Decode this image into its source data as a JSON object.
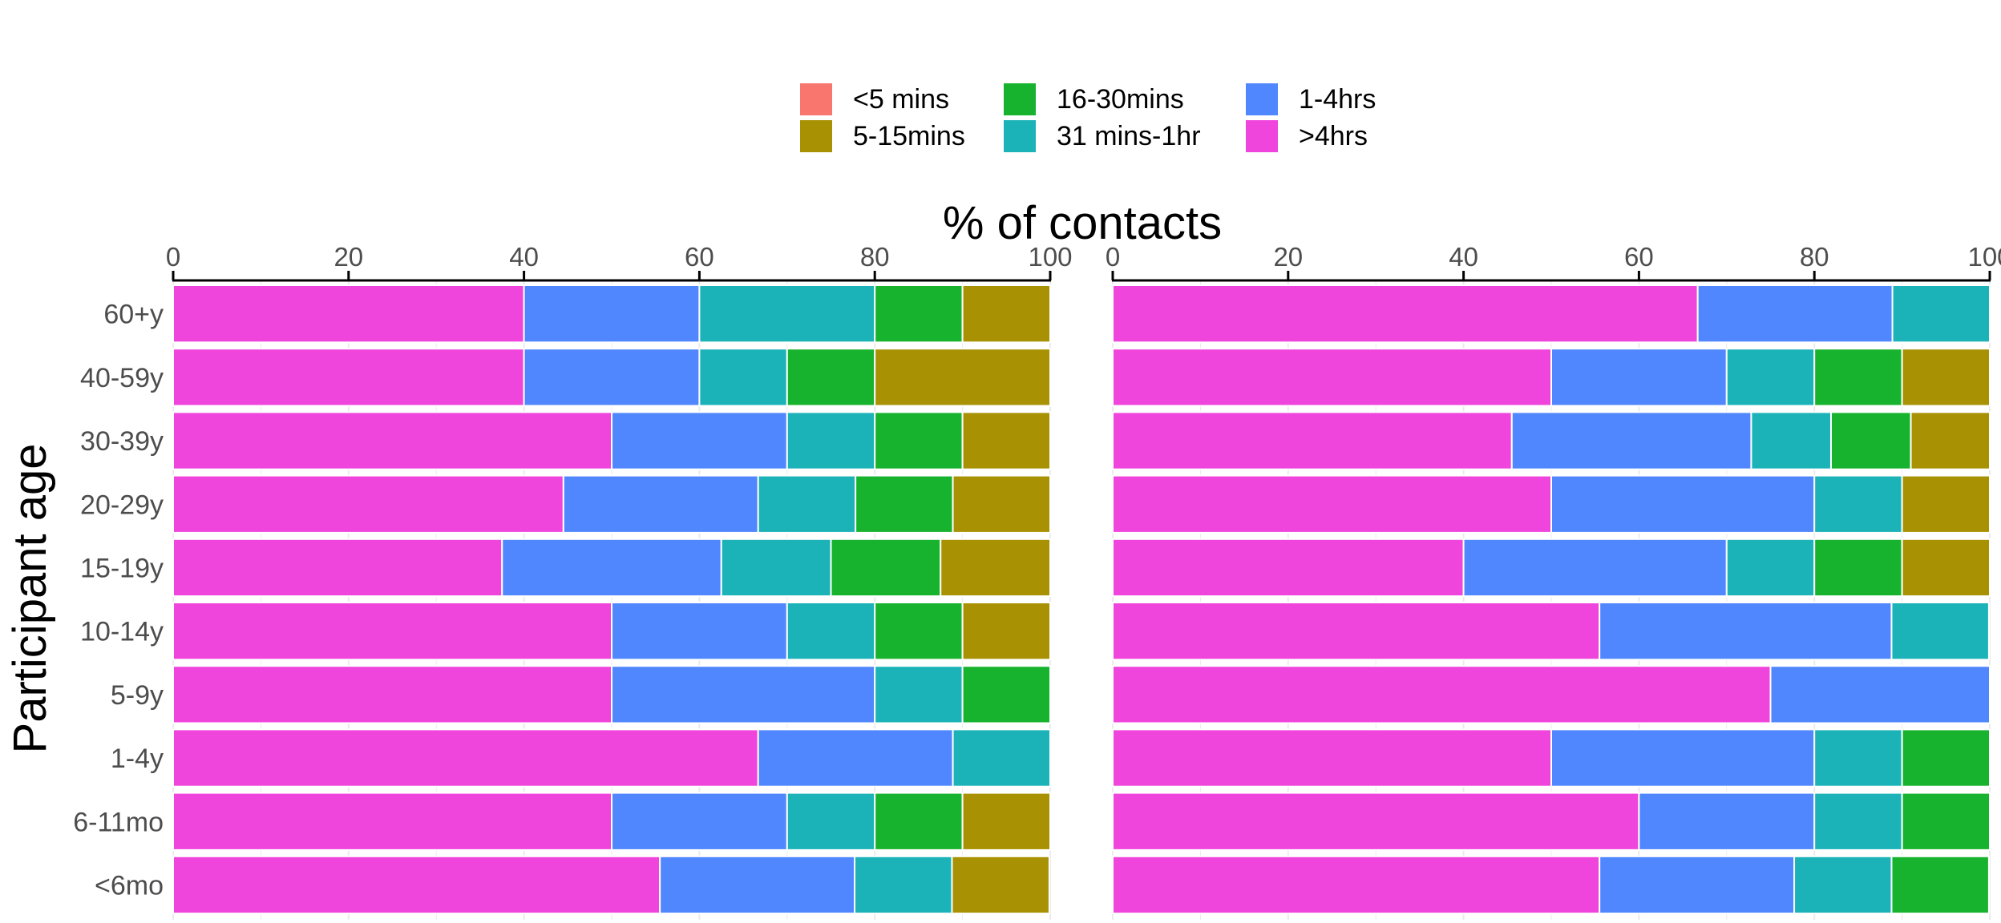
{
  "chart_data": {
    "type": "bar",
    "orientation": "horizontal",
    "stacked": true,
    "xlabel": "% of contacts",
    "ylabel": "Participant age",
    "xlim": [
      0,
      100
    ],
    "x_ticks": [
      "0",
      "20",
      "40",
      "60",
      "80",
      "100"
    ],
    "categories": [
      "60+y",
      "40-59y",
      "30-39y",
      "20-29y",
      "15-19y",
      "10-14y",
      "5-9y",
      "1-4y",
      "6-11mo",
      "<6mo"
    ],
    "legend_position": "top",
    "legend": [
      {
        "name": "<5 mins",
        "color": "#F8766D"
      },
      {
        "name": "5-15mins",
        "color": "#A89102"
      },
      {
        "name": "16-30mins",
        "color": "#18B32E"
      },
      {
        "name": "31 mins-1hr",
        "color": "#1BB3B8"
      },
      {
        "name": "1-4hrs",
        "color": "#5087FF"
      },
      {
        "name": ">4hrs",
        "color": "#F045DC"
      }
    ],
    "stack_order": [
      ">4hrs",
      "1-4hrs",
      "31 mins-1hr",
      "16-30mins",
      "5-15mins",
      "<5 mins"
    ],
    "panels": [
      {
        "series": [
          {
            "name": ">4hrs",
            "values": [
              40,
              40,
              50,
              44.5,
              37.5,
              50,
              50,
              66.7,
              50,
              55.5
            ]
          },
          {
            "name": "1-4hrs",
            "values": [
              20,
              20,
              20,
              22.2,
              25,
              20,
              30,
              22.2,
              20,
              22.2
            ]
          },
          {
            "name": "31 mins-1hr",
            "values": [
              20,
              10,
              10,
              11.1,
              12.5,
              10,
              10,
              11.1,
              10,
              11.1
            ]
          },
          {
            "name": "16-30mins",
            "values": [
              10,
              10,
              10,
              11.1,
              12.5,
              10,
              10,
              0,
              10,
              0
            ]
          },
          {
            "name": "5-15mins",
            "values": [
              10,
              20,
              10,
              11.1,
              12.5,
              10,
              0,
              0,
              10,
              11.1
            ]
          },
          {
            "name": "<5 mins",
            "values": [
              0,
              0,
              0,
              0,
              0,
              0,
              0,
              0,
              0,
              0
            ]
          }
        ]
      },
      {
        "series": [
          {
            "name": ">4hrs",
            "values": [
              66.7,
              50,
              45.5,
              50,
              40,
              55.5,
              75,
              50,
              60,
              55.5
            ]
          },
          {
            "name": "1-4hrs",
            "values": [
              22.2,
              20,
              27.3,
              30,
              30,
              33.3,
              25,
              30,
              20,
              22.2
            ]
          },
          {
            "name": "31 mins-1hr",
            "values": [
              11.1,
              10,
              9.1,
              10,
              10,
              11.1,
              0,
              10,
              10,
              11.1
            ]
          },
          {
            "name": "16-30mins",
            "values": [
              0,
              10,
              9.1,
              0,
              10,
              0,
              0,
              10,
              10,
              11.1
            ]
          },
          {
            "name": "5-15mins",
            "values": [
              0,
              10,
              9.1,
              10,
              10,
              0,
              0,
              0,
              0,
              0
            ]
          },
          {
            "name": "<5 mins",
            "values": [
              0,
              0,
              0,
              0,
              0,
              0,
              0,
              0,
              0,
              0
            ]
          }
        ]
      }
    ]
  }
}
